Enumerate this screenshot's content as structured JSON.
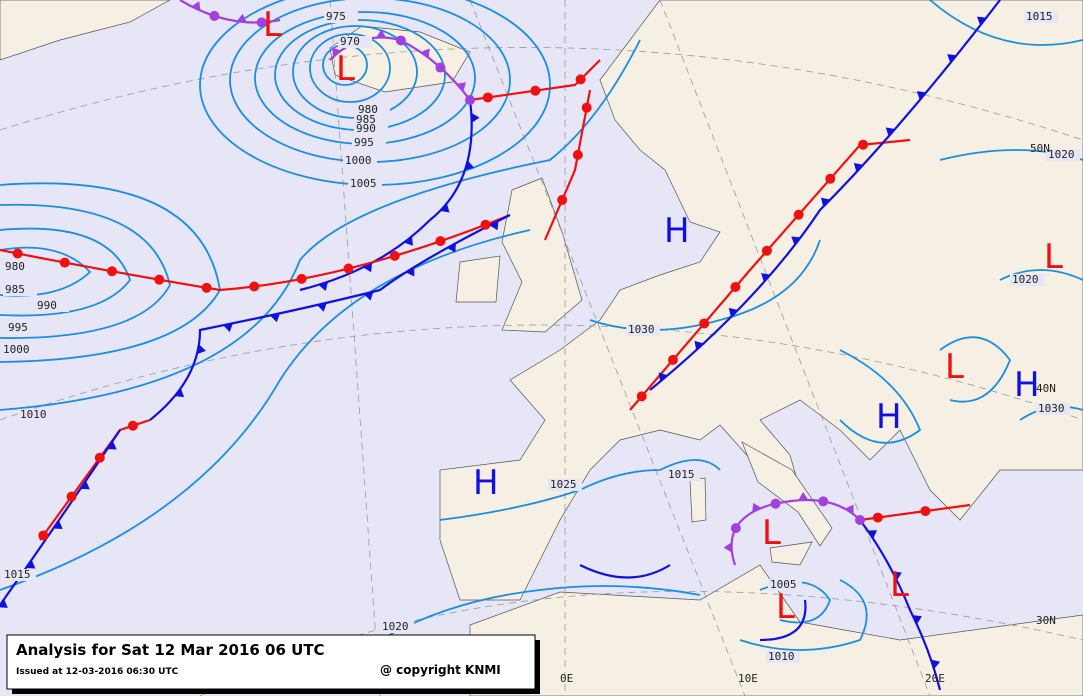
{
  "title": "Analysis for Sat 12 Mar 2016 06 UTC",
  "issued": "Issued at 12-03-2016 06:30 UTC",
  "copyright": "@ copyright KNMI",
  "isobar_labels": [
    "975",
    "970",
    "980",
    "985",
    "990",
    "995",
    "1000",
    "1005",
    "980",
    "985",
    "990",
    "995",
    "1000",
    "1010",
    "1015",
    "1030",
    "1025",
    "1015",
    "1005",
    "1010",
    "1020",
    "1015",
    "1020",
    "1020",
    "1030"
  ],
  "grid_labels": [
    "50N",
    "40N",
    "30N",
    "0E",
    "10E",
    "20E"
  ],
  "pressure_centers": [
    "L",
    "L",
    "H",
    "H",
    "H",
    "H",
    "L",
    "L",
    "L",
    "L",
    "L"
  ]
}
